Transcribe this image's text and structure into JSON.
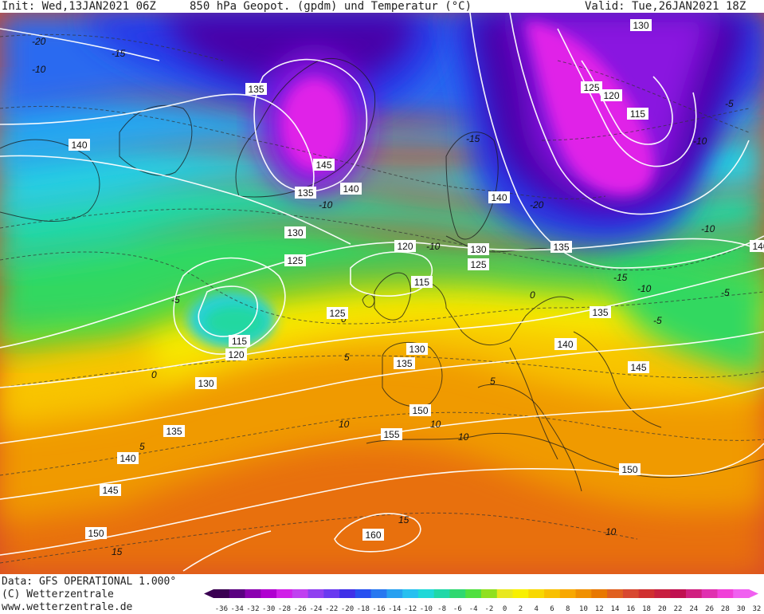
{
  "header": {
    "init": "Init: Wed,13JAN2021 06Z",
    "title": "850 hPa Geopot. (gpdm) und Temperatur (°C)",
    "valid": "Valid: Tue,26JAN2021 18Z"
  },
  "footer": {
    "data_source": "Data: GFS OPERATIONAL 1.000°",
    "copyright": "(C) Wetterzentrale",
    "url": "www.wetterzentrale.de"
  },
  "legend": {
    "ticks": [
      "-36",
      "-34",
      "-32",
      "-30",
      "-28",
      "-26",
      "-24",
      "-22",
      "-20",
      "-18",
      "-16",
      "-14",
      "-12",
      "-10",
      "-8",
      "-6",
      "-4",
      "-2",
      "0",
      "2",
      "4",
      "6",
      "8",
      "10",
      "12",
      "14",
      "16",
      "18",
      "20",
      "22",
      "24",
      "26",
      "28",
      "30",
      "32"
    ],
    "colors": [
      "#3a0052",
      "#5a0080",
      "#8a00b0",
      "#b000d0",
      "#d020e8",
      "#c040f0",
      "#9040f0",
      "#6a3af0",
      "#4030e8",
      "#2850f0",
      "#2878f0",
      "#28a0f0",
      "#28c0f0",
      "#20d8d8",
      "#20d8a8",
      "#30d870",
      "#50e040",
      "#90e020",
      "#e8e820",
      "#f8f000",
      "#f8d800",
      "#f8c000",
      "#f8a800",
      "#f09000",
      "#e87800",
      "#e06020",
      "#d84830",
      "#d03030",
      "#c82040",
      "#c01050",
      "#d02080",
      "#e030b0",
      "#f040d8",
      "#f060f0"
    ]
  },
  "map": {
    "colors": {
      "deep_violet": "#4a00a8",
      "purple": "#8a18e0",
      "magenta": "#e020e8",
      "blue": "#2838e8",
      "mid_blue": "#2a6af0",
      "light_blue": "#28a8f0",
      "cyan": "#28d0e0",
      "teal": "#20d8a0",
      "green": "#30d860",
      "lime": "#80e020",
      "yellow": "#f8e800",
      "gold": "#f8c400",
      "orange": "#f09a00",
      "deep_orange": "#e87010",
      "red_orange": "#d84a20"
    },
    "geopotential_labels": [
      {
        "text": "130"
      },
      {
        "text": "135"
      },
      {
        "text": "140"
      },
      {
        "text": "145"
      },
      {
        "text": "140"
      },
      {
        "text": "135"
      },
      {
        "text": "130"
      },
      {
        "text": "125"
      },
      {
        "text": "120"
      },
      {
        "text": "115"
      },
      {
        "text": "125"
      },
      {
        "text": "115"
      },
      {
        "text": "120"
      },
      {
        "text": "130"
      },
      {
        "text": "135"
      },
      {
        "text": "140"
      },
      {
        "text": "145"
      },
      {
        "text": "150"
      },
      {
        "text": "155"
      },
      {
        "text": "160"
      },
      {
        "text": "150"
      },
      {
        "text": "130"
      },
      {
        "text": "135"
      },
      {
        "text": "140"
      },
      {
        "text": "130"
      },
      {
        "text": "125"
      },
      {
        "text": "140"
      },
      {
        "text": "135"
      },
      {
        "text": "140"
      },
      {
        "text": "125"
      },
      {
        "text": "120"
      },
      {
        "text": "115"
      },
      {
        "text": "130"
      },
      {
        "text": "135"
      },
      {
        "text": "140"
      },
      {
        "text": "145"
      },
      {
        "text": "150"
      }
    ],
    "temperature_labels": [
      {
        "text": "-20"
      },
      {
        "text": "-15"
      },
      {
        "text": "-10"
      },
      {
        "text": "-5"
      },
      {
        "text": "0"
      },
      {
        "text": "5"
      },
      {
        "text": "10"
      },
      {
        "text": "15"
      },
      {
        "text": "-15"
      },
      {
        "text": "-20"
      },
      {
        "text": "-10"
      },
      {
        "text": "-5"
      },
      {
        "text": "-10"
      },
      {
        "text": "-5"
      },
      {
        "text": "-15"
      },
      {
        "text": "-10"
      },
      {
        "text": "-5"
      },
      {
        "text": "0"
      },
      {
        "text": "0"
      },
      {
        "text": "5"
      },
      {
        "text": "5"
      },
      {
        "text": "10"
      },
      {
        "text": "10"
      },
      {
        "text": "15"
      },
      {
        "text": "10"
      },
      {
        "text": "-10"
      },
      {
        "text": "-10"
      }
    ]
  }
}
